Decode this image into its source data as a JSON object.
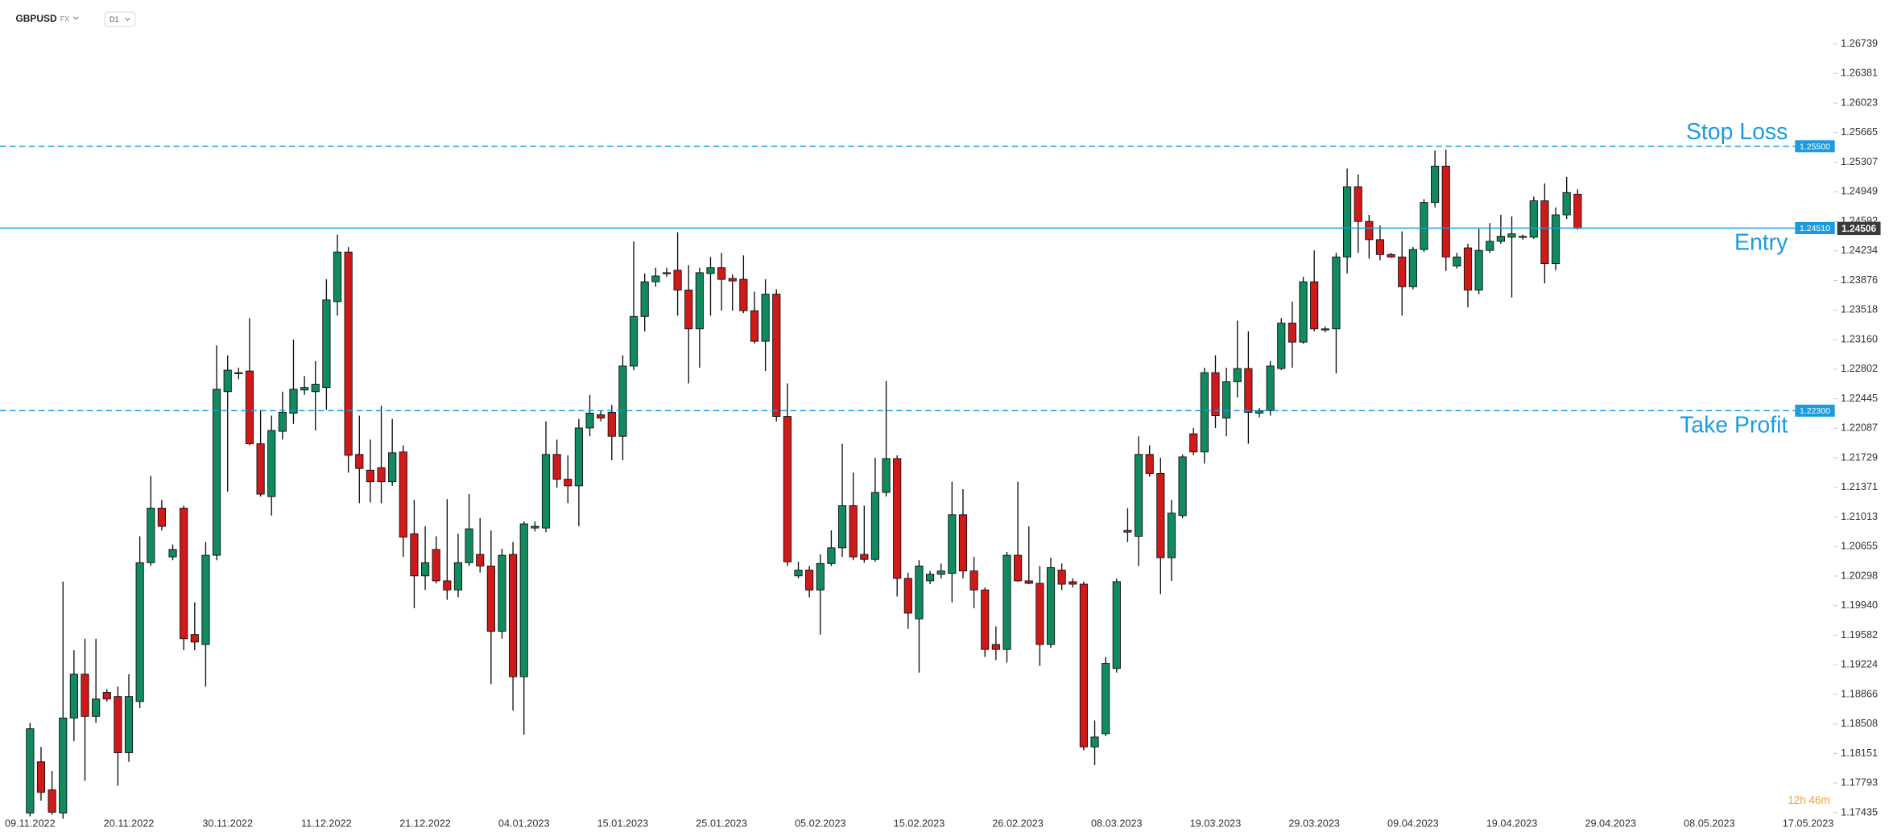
{
  "header": {
    "symbol": "GBPUSD",
    "market": "FX",
    "timeframe": "D1"
  },
  "chart_data": {
    "type": "candlestick",
    "bull_color": "#118a5d",
    "bear_color": "#d01a1a",
    "level_color": "#1a9ce0",
    "last_color": "#3a3a3a",
    "countdown_color": "#f0a030",
    "grid": false,
    "xlim": [
      -2.74,
      164.1
    ],
    "xticks": [
      {
        "value": 0,
        "label": "09.11.2022"
      },
      {
        "value": 9,
        "label": "20.11.2022"
      },
      {
        "value": 18,
        "label": "30.11.2022"
      },
      {
        "value": 27,
        "label": "11.12.2022"
      },
      {
        "value": 36,
        "label": "21.12.2022"
      },
      {
        "value": 45,
        "label": "04.01.2023"
      },
      {
        "value": 54,
        "label": "15.01.2023"
      },
      {
        "value": 63,
        "label": "25.01.2023"
      },
      {
        "value": 72,
        "label": "05.02.2023"
      },
      {
        "value": 81,
        "label": "15.02.2023"
      },
      {
        "value": 90,
        "label": "26.02.2023"
      },
      {
        "value": 99,
        "label": "08.03.2023"
      },
      {
        "value": 108,
        "label": "19.03.2023"
      },
      {
        "value": 117,
        "label": "29.03.2023"
      },
      {
        "value": 126,
        "label": "09.04.2023"
      },
      {
        "value": 135,
        "label": "19.04.2023"
      },
      {
        "value": 144,
        "label": "29.04.2023"
      },
      {
        "value": 153,
        "label": "08.05.2023"
      },
      {
        "value": 162,
        "label": "17.05.2023"
      }
    ],
    "ylim": [
      1.17356,
      1.26906
    ],
    "yticks": [
      1.26739,
      1.26381,
      1.26023,
      1.25665,
      1.25307,
      1.24949,
      1.24592,
      1.24234,
      1.23876,
      1.23518,
      {
        "value": 1.2316,
        "label": "1.23160"
      },
      1.22802,
      1.22445,
      1.22087,
      1.21729,
      1.21371,
      1.21013,
      1.20655,
      1.20298,
      {
        "value": 1.1994,
        "label": "1.19940"
      },
      1.19582,
      1.19224,
      1.18866,
      1.18508,
      1.18151,
      1.17793,
      1.17435
    ],
    "levels": [
      {
        "name": "Stop Loss",
        "value": 1.255,
        "label": "1.25500",
        "style": "dashed",
        "text_side": "above"
      },
      {
        "name": "Entry",
        "value": 1.2451,
        "label": "1.24510",
        "style": "solid",
        "text_side": "below"
      },
      {
        "name": "Take Profit",
        "value": 1.223,
        "label": "1.22300",
        "style": "dashed",
        "text_side": "below"
      }
    ],
    "countdown": "12h 46m",
    "open": [
      1.1743,
      1.1805,
      1.1771,
      1.1743,
      1.1858,
      1.1911,
      1.186,
      1.1889,
      1.1884,
      1.1816,
      1.1878,
      1.2046,
      1.2112,
      1.2053,
      1.2112,
      1.1959,
      1.1947,
      1.2055,
      1.2253,
      1.2275,
      1.2278,
      1.219,
      1.2126,
      1.2205,
      1.2227,
      1.2255,
      1.2253,
      1.2258,
      1.2362,
      1.2422,
      1.2177,
      1.2158,
      1.2161,
      1.2144,
      1.218,
      1.2081,
      1.203,
      1.2062,
      1.2024,
      1.2013,
      1.2046,
      1.2056,
      1.2042,
      1.1963,
      1.2056,
      1.1908,
      1.2088,
      1.2088,
      1.2177,
      1.2147,
      1.2139,
      1.2209,
      1.2225,
      1.2228,
      1.2199,
      1.2284,
      1.2344,
      1.2386,
      1.2397,
      1.24,
      1.2376,
      1.2329,
      1.2396,
      1.2403,
      1.239,
      1.2389,
      1.2351,
      1.2314,
      1.2371,
      1.2223,
      1.203,
      1.2037,
      1.2013,
      1.2045,
      1.2064,
      1.2115,
      1.2056,
      1.205,
      1.2131,
      1.2172,
      1.2027,
      1.1978,
      1.2024,
      1.2032,
      1.2033,
      1.2104,
      1.2036,
      1.2013,
      1.1947,
      1.1941,
      1.2055,
      1.2024,
      1.2021,
      1.1947,
      1.2037,
      1.2023,
      1.202,
      1.1823,
      1.1839,
      1.1918,
      1.2085,
      1.2078,
      1.2177,
      1.2154,
      1.2052,
      1.2103,
      1.2202,
      1.218,
      1.2276,
      1.2221,
      1.2265,
      1.2281,
      1.2227,
      1.223,
      1.2281,
      1.2336,
      1.2313,
      1.2386,
      1.2329,
      1.2329,
      1.2416,
      1.2501,
      1.2459,
      1.2437,
      1.2419,
      1.2416,
      1.238,
      1.2425,
      1.2482,
      1.2526,
      1.2405,
      1.2427,
      1.2376,
      1.2424,
      1.2435,
      1.244,
      1.244,
      1.244,
      1.2484,
      1.2408,
      1.2467,
      1.2492
    ],
    "high": [
      1.1852,
      1.1823,
      1.1794,
      1.2023,
      1.194,
      1.1954,
      1.1954,
      1.1893,
      1.1896,
      1.1911,
      1.2078,
      1.2151,
      1.2122,
      1.2068,
      1.2115,
      1.1998,
      1.2071,
      1.2309,
      1.2297,
      1.2282,
      1.2342,
      1.2231,
      1.2224,
      1.2253,
      1.2316,
      1.2272,
      1.229,
      1.2389,
      1.2443,
      1.2428,
      1.2224,
      1.2195,
      1.2236,
      1.222,
      1.2188,
      1.2122,
      1.209,
      1.2078,
      1.2123,
      1.2081,
      1.2129,
      1.21,
      1.2085,
      1.2063,
      1.2071,
      1.2096,
      1.2096,
      1.2217,
      1.2195,
      1.2176,
      1.222,
      1.2249,
      1.223,
      1.2237,
      1.2297,
      1.2435,
      1.2396,
      1.2403,
      1.2403,
      1.2446,
      1.2406,
      1.2403,
      1.2416,
      1.2421,
      1.2395,
      1.2418,
      1.2374,
      1.2389,
      1.2377,
      1.2263,
      1.2047,
      1.2042,
      1.2056,
      1.2085,
      1.219,
      1.2155,
      1.2115,
      1.2173,
      1.2266,
      1.2176,
      1.2034,
      1.2049,
      1.2036,
      1.2045,
      1.2144,
      1.2135,
      1.2053,
      1.2016,
      1.1969,
      1.2059,
      1.2144,
      1.209,
      1.2042,
      1.2052,
      1.2045,
      1.2027,
      1.2023,
      1.1855,
      1.1932,
      1.2027,
      1.2112,
      1.2199,
      1.2188,
      1.2173,
      1.2122,
      1.2177,
      1.2209,
      1.2282,
      1.2297,
      1.2282,
      1.2339,
      1.2326,
      1.2233,
      1.229,
      1.2342,
      1.2362,
      1.2392,
      1.2424,
      1.2332,
      1.2421,
      1.2523,
      1.2516,
      1.2467,
      1.2454,
      1.2421,
      1.2447,
      1.2428,
      1.2486,
      1.2545,
      1.2546,
      1.2421,
      1.2432,
      1.245,
      1.2457,
      1.2467,
      1.2465,
      1.2443,
      1.2489,
      1.2505,
      1.2476,
      1.2513,
      1.2498
    ],
    "low": [
      1.1739,
      1.1758,
      1.1741,
      1.1736,
      1.183,
      1.1782,
      1.1852,
      1.1878,
      1.1776,
      1.1805,
      1.187,
      1.2042,
      1.2085,
      1.2049,
      1.194,
      1.194,
      1.1896,
      1.2049,
      1.2132,
      1.2268,
      1.2188,
      1.2126,
      1.2103,
      1.2195,
      1.2214,
      1.2249,
      1.2206,
      1.2231,
      1.2345,
      1.2155,
      1.2118,
      1.2119,
      1.2118,
      1.2139,
      1.2053,
      1.1991,
      1.2013,
      1.2021,
      1.2001,
      1.2004,
      1.2042,
      1.2034,
      1.1899,
      1.1954,
      1.1867,
      1.1838,
      1.2084,
      1.2083,
      1.2137,
      1.2118,
      1.209,
      1.2199,
      1.2217,
      1.217,
      1.217,
      1.2279,
      1.2326,
      1.238,
      1.2392,
      1.2345,
      1.2263,
      1.2282,
      1.2345,
      1.2351,
      1.2351,
      1.2348,
      1.2311,
      1.2278,
      1.2217,
      1.2042,
      1.2027,
      1.2004,
      1.1959,
      1.2042,
      1.2053,
      1.2049,
      1.2046,
      1.2047,
      1.2126,
      1.2005,
      1.1966,
      1.1913,
      1.202,
      1.2027,
      1.1998,
      1.2027,
      1.1991,
      1.1932,
      1.1928,
      1.1925,
      1.2023,
      1.202,
      1.1921,
      1.1943,
      1.2013,
      1.2016,
      1.1819,
      1.1801,
      1.1836,
      1.1913,
      1.2071,
      1.2042,
      1.215,
      1.2008,
      1.2024,
      1.21,
      1.2176,
      1.2166,
      1.2209,
      1.2199,
      1.2246,
      1.219,
      1.2222,
      1.2224,
      1.2279,
      1.2282,
      1.2311,
      1.2326,
      1.2325,
      1.2275,
      1.2396,
      1.2421,
      1.2414,
      1.2412,
      1.2415,
      1.2345,
      1.2377,
      1.2422,
      1.2476,
      1.2399,
      1.2402,
      1.2355,
      1.2371,
      1.2421,
      1.2432,
      1.2367,
      1.2437,
      1.2438,
      1.2384,
      1.24,
      1.2462,
      1.2449
    ],
    "close": [
      1.1845,
      1.1768,
      1.1744,
      1.1858,
      1.1911,
      1.186,
      1.1881,
      1.1881,
      1.1816,
      1.1884,
      1.2046,
      1.2112,
      1.209,
      1.2062,
      1.1954,
      1.195,
      1.2055,
      1.2256,
      1.2279,
      1.2276,
      1.219,
      1.2129,
      1.2206,
      1.2228,
      1.2256,
      1.2258,
      1.2262,
      1.2364,
      1.2422,
      1.2176,
      1.216,
      1.2144,
      1.2144,
      1.2179,
      1.2077,
      1.203,
      1.2046,
      1.2024,
      1.2013,
      1.2046,
      1.2087,
      1.2042,
      1.1963,
      1.2055,
      1.1908,
      1.2093,
      1.209,
      1.2177,
      1.2147,
      1.2139,
      1.2209,
      1.2227,
      1.2221,
      1.2199,
      1.2284,
      1.2344,
      1.2386,
      1.2393,
      1.2396,
      1.2376,
      1.2329,
      1.2397,
      1.2403,
      1.2389,
      1.2387,
      1.2351,
      1.2314,
      1.2371,
      1.2223,
      1.2047,
      1.2037,
      1.2013,
      1.2045,
      1.2064,
      1.2115,
      1.2053,
      1.205,
      1.2131,
      1.2172,
      1.2027,
      1.1985,
      1.2042,
      1.2032,
      1.2036,
      1.2104,
      1.2036,
      1.2013,
      1.1941,
      1.1941,
      1.2055,
      1.2024,
      1.2021,
      1.1947,
      1.204,
      1.202,
      1.202,
      1.1823,
      1.1835,
      1.1924,
      1.2023,
      1.2083,
      1.2177,
      1.2154,
      1.2052,
      1.2106,
      1.2174,
      1.218,
      1.2276,
      1.2224,
      1.2265,
      1.2281,
      1.2228,
      1.223,
      1.2284,
      1.2336,
      1.2313,
      1.2386,
      1.2329,
      1.2328,
      1.2416,
      1.2501,
      1.2459,
      1.2437,
      1.2419,
      1.2416,
      1.238,
      1.2425,
      1.2482,
      1.2526,
      1.2416,
      1.2416,
      1.2376,
      1.2424,
      1.2435,
      1.2441,
      1.2444,
      1.2441,
      1.2484,
      1.2408,
      1.2467,
      1.2494,
      1.24506
    ]
  }
}
